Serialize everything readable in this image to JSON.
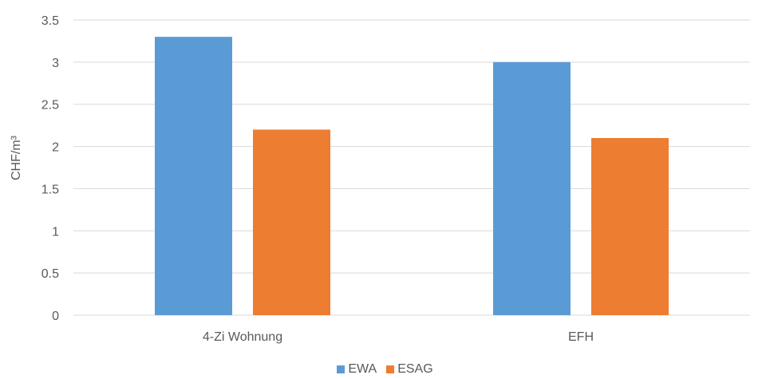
{
  "chart_data": {
    "type": "bar",
    "title": "",
    "xlabel": "",
    "ylabel": "CHF/m³",
    "categories": [
      "4-Zi Wohnung",
      "EFH"
    ],
    "series": [
      {
        "name": "EWA",
        "values": [
          3.3,
          3.0
        ],
        "color": "#5b9bd5"
      },
      {
        "name": "ESAG",
        "values": [
          2.2,
          2.1
        ],
        "color": "#ed7d31"
      }
    ],
    "ylim": [
      0,
      3.5
    ],
    "yticks": [
      "0",
      "0.5",
      "1",
      "1.5",
      "2",
      "2.5",
      "3",
      "3.5"
    ],
    "grid": true,
    "legend_position": "bottom"
  }
}
